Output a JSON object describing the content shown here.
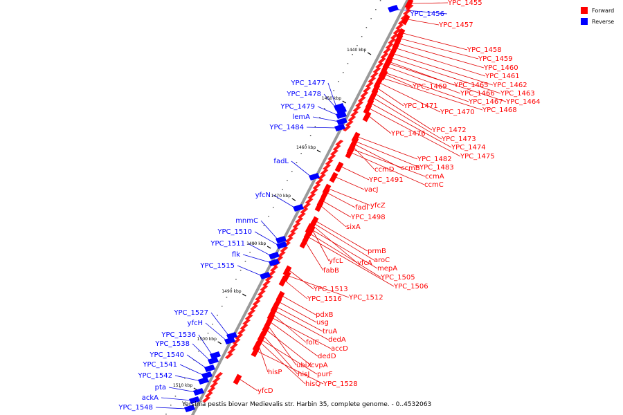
{
  "caption": "Yersinia pestis biovar Medievalis str. Harbin 35, complete genome. - 0..4532063",
  "legend": [
    {
      "label": "Forward",
      "color": "#ff0000"
    },
    {
      "label": "Reverse",
      "color": "#0000ff"
    }
  ],
  "colors": {
    "forward": "#ff0000",
    "reverse": "#0000ff",
    "axis": "#999999",
    "fwd_line": "#e00000",
    "rev_line": "#0000e0"
  },
  "ticks": [
    "1440 kbp",
    "1450 kbp",
    "1460 kbp",
    "1470 kbp",
    "1480 kbp",
    "1490 kbp",
    "1500 kbp",
    "1510 kbp"
  ],
  "forward_genes": [
    "YPC_1455",
    "YPC_1457",
    "YPC_1458",
    "YPC_1459",
    "YPC_1460",
    "YPC_1461",
    "YPC_1462",
    "YPC_1463",
    "YPC_1464",
    "YPC_1465",
    "YPC_1466",
    "YPC_1467",
    "YPC_1468",
    "YPC_1469",
    "YPC_1470",
    "YPC_1471",
    "YPC_1472",
    "YPC_1473",
    "YPC_1474",
    "YPC_1475",
    "YPC_1476",
    "YPC_1482",
    "YPC_1483",
    "ccmB",
    "ccmD",
    "ccmA",
    "ccmC",
    "YPC_1491",
    "vacJ",
    "yfcZ",
    "fadI",
    "YPC_1498",
    "sixA",
    "prmB",
    "aroC",
    "yfcL",
    "yfcA",
    "mepA",
    "fabB",
    "YPC_1505",
    "YPC_1506",
    "YPC_1513",
    "YPC_1512",
    "YPC_1516",
    "pdxB",
    "usg",
    "truA",
    "dedA",
    "folC",
    "accD",
    "dedD",
    "ubiX",
    "cvpA",
    "hisP",
    "hisJ",
    "purF",
    "hisQ",
    "YPC_1528",
    "yfcD"
  ],
  "reverse_genes": [
    "YPC_1456",
    "YPC_1477",
    "YPC_1478",
    "YPC_1479",
    "lemA",
    "YPC_1484",
    "fadL",
    "yfcN",
    "mnmC",
    "YPC_1510",
    "YPC_1511",
    "flk",
    "YPC_1515",
    "YPC_1527",
    "yfcH",
    "YPC_1536",
    "YPC_1538",
    "YPC_1540",
    "YPC_1541",
    "YPC_1542",
    "pta",
    "ackA",
    "YPC_1548"
  ]
}
